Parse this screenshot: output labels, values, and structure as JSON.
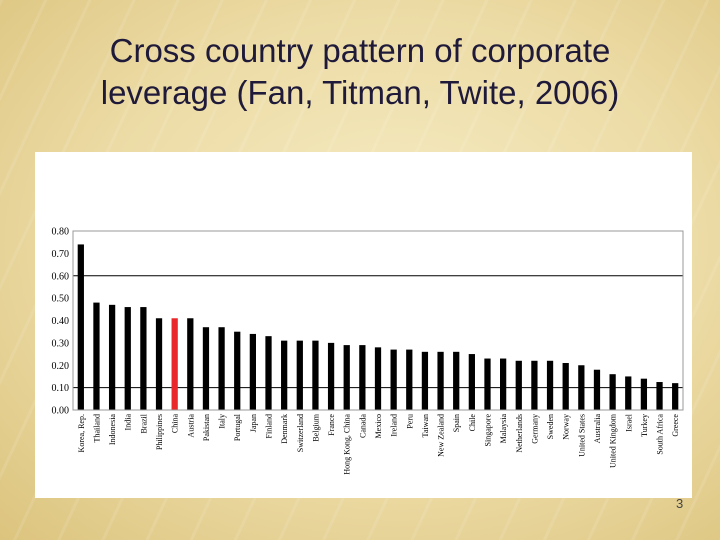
{
  "slide": {
    "title": "Cross country pattern of corporate\nleverage (Fan, Titman, Twite, 2006)",
    "page_number": "3"
  },
  "colors": {
    "bar": "#000000",
    "highlight_bar": "#e8282a",
    "highlighted_category": "China",
    "grid": "#000000"
  },
  "chart_data": {
    "type": "bar",
    "title": "",
    "xlabel": "",
    "ylabel": "",
    "ylim": [
      0,
      0.8
    ],
    "yticks": [
      "0.00",
      "0.10",
      "0.20",
      "0.30",
      "0.40",
      "0.50",
      "0.60",
      "0.70",
      "0.80"
    ],
    "gridlines_at": [
      0.1,
      0.6
    ],
    "categories": [
      "Korea, Rep.",
      "Thailand",
      "Indonesia",
      "India",
      "Brazil",
      "Philippines",
      "China",
      "Austria",
      "Pakistan",
      "Italy",
      "Portugal",
      "Japan",
      "Finland",
      "Denmark",
      "Switzerland",
      "Belgium",
      "France",
      "Hong Kong, China",
      "Canada",
      "Mexico",
      "Ireland",
      "Peru",
      "Taiwan",
      "New Zealand",
      "Spain",
      "Chile",
      "Singapore",
      "Malaysia",
      "Netherlands",
      "Germany",
      "Sweden",
      "Norway",
      "United States",
      "Australia",
      "United Kingdom",
      "Israel",
      "Turkey",
      "South Africa",
      "Greece"
    ],
    "values": [
      0.74,
      0.48,
      0.47,
      0.46,
      0.46,
      0.41,
      0.41,
      0.41,
      0.37,
      0.37,
      0.35,
      0.34,
      0.33,
      0.31,
      0.31,
      0.31,
      0.3,
      0.29,
      0.29,
      0.28,
      0.27,
      0.27,
      0.26,
      0.26,
      0.26,
      0.25,
      0.23,
      0.23,
      0.22,
      0.22,
      0.22,
      0.21,
      0.2,
      0.18,
      0.16,
      0.15,
      0.14,
      0.125,
      0.12
    ]
  }
}
